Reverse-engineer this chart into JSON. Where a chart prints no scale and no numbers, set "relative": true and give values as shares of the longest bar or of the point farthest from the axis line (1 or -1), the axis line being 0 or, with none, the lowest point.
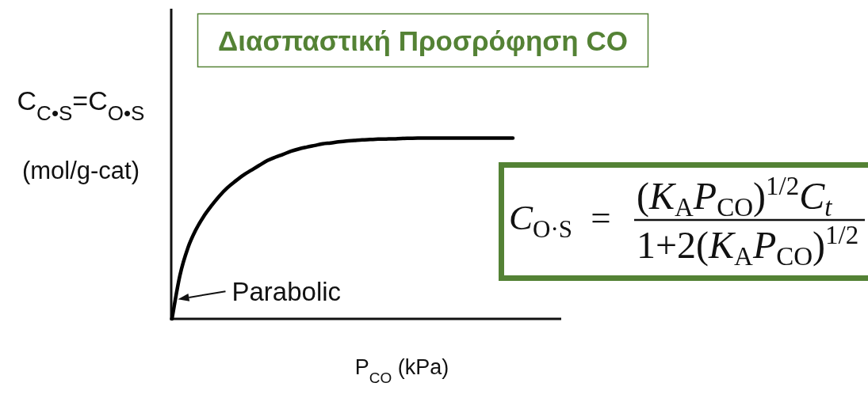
{
  "chart_data": {
    "type": "line",
    "title": "Διασπαστική Προσρόφηση CO",
    "xlabel": "P$_{CO}$ (kPa)",
    "ylabel": "C$_{C•S}$=C$_{O•S}$ (mol/g-cat)",
    "annotations": [
      "Parabolic",
      "C$_{O·S}$ =",
      "(K$_{A}$P$_{CO}$)$^{1/2}$C$_{t}$",
      "1+2(K$_{A}$P$_{CO}$)$^{1/2}$"
    ],
    "relative": true,
    "categories": [
      null,
      null,
      null,
      null,
      null,
      null,
      null,
      null,
      null,
      null,
      null,
      null,
      null,
      null,
      null,
      null,
      null,
      null,
      null,
      null,
      null,
      null,
      null,
      null,
      null,
      null,
      null,
      null,
      null,
      null,
      null,
      null,
      null,
      null,
      null,
      null,
      null,
      null,
      null,
      null,
      null,
      null,
      null,
      null
    ],
    "series": [
      {
        "color": "#000000",
        "values": [
          0,
          0.241,
          0.392,
          0.492,
          0.567,
          0.627,
          0.681,
          0.726,
          0.762,
          0.795,
          0.822,
          0.849,
          0.875,
          0.894,
          0.91,
          0.927,
          0.94,
          0.95,
          0.959,
          0.968,
          0.973,
          0.979,
          0.984,
          0.987,
          0.99,
          0.992,
          0.994,
          0.995,
          0.996,
          0.998,
          0.999,
          1,
          1,
          1,
          1,
          1,
          1,
          1,
          1,
          1,
          1,
          1,
          1,
          1
        ]
      }
    ]
  }
}
